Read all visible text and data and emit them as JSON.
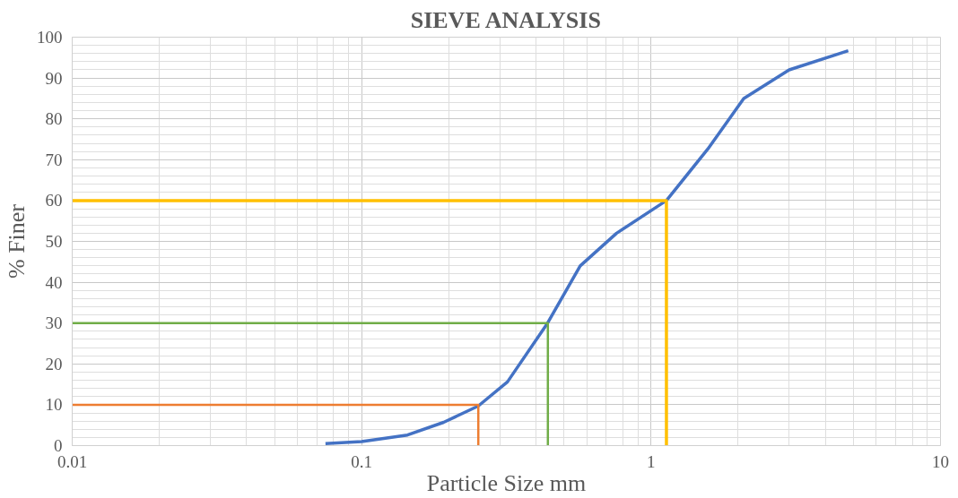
{
  "chart_data": {
    "type": "line",
    "title": "SIEVE ANALYSIS",
    "xlabel": "Particle Size mm",
    "ylabel": "% Finer",
    "log": "x",
    "grid": true,
    "marker": "none",
    "line_style": "solid",
    "xlim": [
      0.01,
      10
    ],
    "xticks": [
      0.01,
      0.1,
      1,
      10
    ],
    "ylim": [
      0,
      100
    ],
    "yticks": [
      0,
      10,
      20,
      30,
      40,
      50,
      60,
      70,
      80,
      90,
      100
    ],
    "series": [
      {
        "color": "#4472c4",
        "x": [
          0.075,
          0.1,
          0.144,
          0.192,
          0.253,
          0.319,
          0.439,
          0.569,
          0.76,
          1.13,
          1.57,
          2.09,
          3.0,
          4.8
        ],
        "values": [
          0.5,
          1,
          2.6,
          5.7,
          9.7,
          15.6,
          30,
          44,
          52,
          60,
          72.6,
          85,
          92,
          96.7
        ]
      },
      {
        "color": "#ffc000",
        "x": [
          0.01,
          1.13,
          1.13
        ],
        "values": [
          60,
          60,
          0
        ]
      },
      {
        "color": "#70ad47",
        "x": [
          0.01,
          0.44,
          0.44
        ],
        "values": [
          30,
          30,
          0
        ]
      },
      {
        "color": "#ed7d31",
        "x": [
          0.01,
          0.253,
          0.253
        ],
        "values": [
          10,
          10,
          0
        ]
      }
    ]
  }
}
